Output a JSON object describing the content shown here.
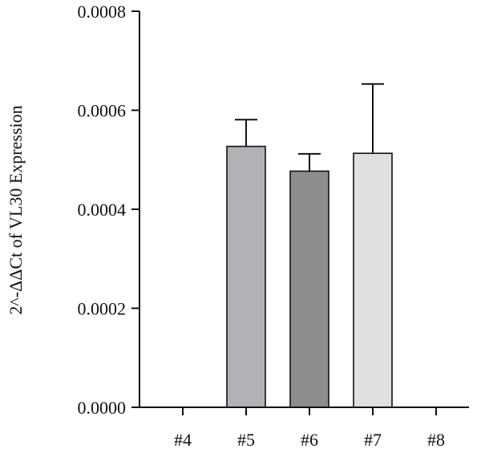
{
  "chart_data": {
    "type": "bar",
    "title": "",
    "xlabel": "",
    "ylabel": "2^-ΔΔCt of VL30 Expression",
    "categories": [
      "#4",
      "#5",
      "#6",
      "#7",
      "#8"
    ],
    "values": [
      0,
      0.000527,
      0.000477,
      0.000513,
      0
    ],
    "error_upper": [
      0,
      5.4e-05,
      3.5e-05,
      0.00014,
      0
    ],
    "bar_colors": [
      null,
      "#b2b1b6",
      "#8d8d8d",
      "#e0e0e0",
      null
    ],
    "ylim": [
      0,
      0.0008
    ],
    "yticks": [
      0,
      0.0002,
      0.0004,
      0.0006,
      0.0008
    ],
    "ytick_labels": [
      "0.0000",
      "0.0002",
      "0.0004",
      "0.0006",
      "0.0008"
    ],
    "grid": false,
    "legend": "none"
  }
}
